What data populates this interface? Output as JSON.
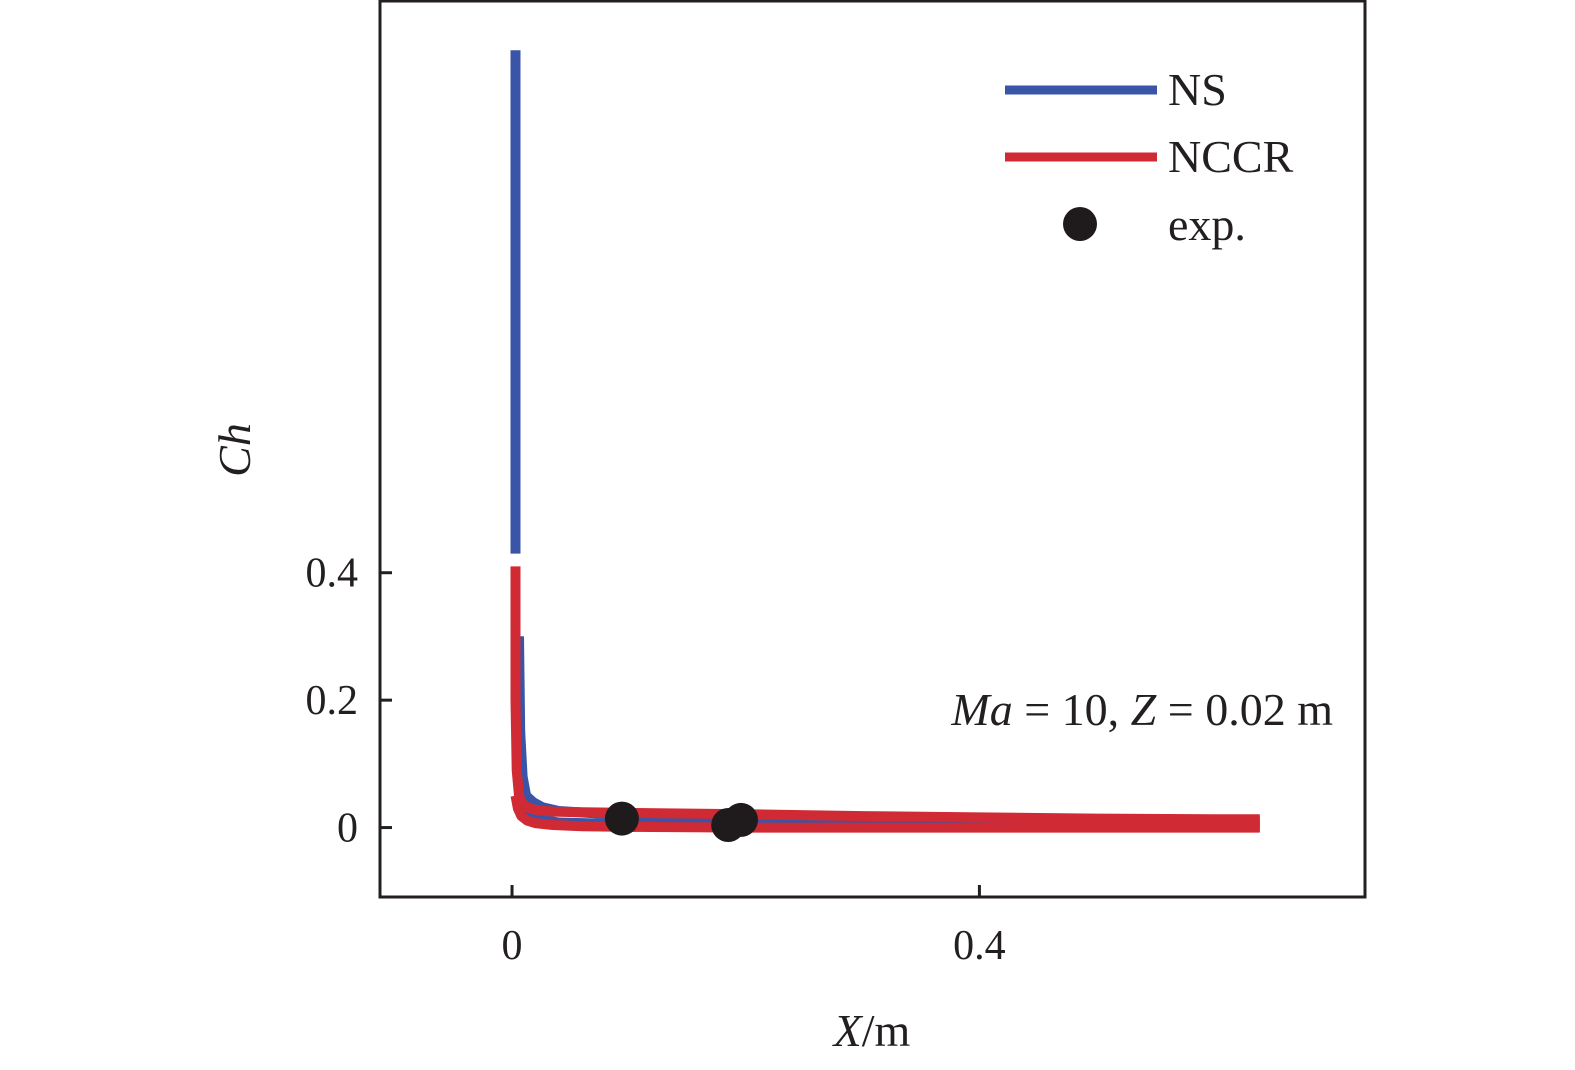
{
  "chart_data": {
    "type": "line",
    "title": "",
    "xlabel": {
      "var": "X",
      "unit": "/m"
    },
    "ylabel": "Ch",
    "xlim": [
      -0.113,
      0.73
    ],
    "ylim": [
      -0.109,
      1.299
    ],
    "x_ticks": [
      0,
      0.4
    ],
    "x_tick_labels": [
      "0",
      "0.4"
    ],
    "y_ticks": [
      0,
      0.2,
      0.4
    ],
    "y_tick_labels": [
      "0",
      "0.2",
      "0.4"
    ],
    "grid": false,
    "legend": {
      "position": "top-right"
    },
    "annotation": {
      "Ma_var": "Ma",
      "Ma_text": " = 10, ",
      "Z_var": "Z",
      "Z_text": " = 0.02 m"
    },
    "colors": {
      "NS": "#3a55a8",
      "NCCR": "#d02a35",
      "exp": "#1f1a1b",
      "axis": "#231f20"
    },
    "series": [
      {
        "name": "NS",
        "type": "line",
        "curves": [
          {
            "x": [
              0.003,
              0.003
            ],
            "y": [
              1.22,
              0.43
            ]
          },
          {
            "x": [
              0.006,
              0.007,
              0.009,
              0.012,
              0.018,
              0.026,
              0.04,
              0.1,
              0.2,
              0.3,
              0.4,
              0.5,
              0.6,
              0.64
            ],
            "y": [
              0.3,
              0.15,
              0.08,
              0.05,
              0.04,
              0.032,
              0.026,
              0.019,
              0.016,
              0.013,
              0.011,
              0.01,
              0.01,
              0.01
            ]
          },
          {
            "x": [
              0.005,
              0.008,
              0.012,
              0.02,
              0.04,
              0.1,
              0.2,
              0.3,
              0.4,
              0.5,
              0.6,
              0.64
            ],
            "y": [
              0.3,
              0.06,
              0.025,
              0.014,
              0.008,
              0.005,
              0.003,
              0.002,
              0.001,
              0.001,
              0.001,
              0.001
            ]
          }
        ]
      },
      {
        "name": "NCCR",
        "type": "line",
        "curves": [
          {
            "x": [
              0.003,
              0.003,
              0.004,
              0.006,
              0.009,
              0.014,
              0.022,
              0.035,
              0.06,
              0.1,
              0.2,
              0.3,
              0.4,
              0.5,
              0.6,
              0.64
            ],
            "y": [
              0.41,
              0.2,
              0.09,
              0.05,
              0.037,
              0.031,
              0.027,
              0.025,
              0.024,
              0.023,
              0.021,
              0.018,
              0.016,
              0.014,
              0.013,
              0.013
            ]
          },
          {
            "x": [
              0.003,
              0.005,
              0.008,
              0.013,
              0.02,
              0.035,
              0.06,
              0.1,
              0.2,
              0.3,
              0.4,
              0.5,
              0.6,
              0.64
            ],
            "y": [
              0.05,
              0.03,
              0.018,
              0.011,
              0.007,
              0.004,
              0.002,
              0.001,
              0.0,
              0.0,
              0.0,
              0.0,
              0.0,
              0.0
            ]
          }
        ]
      },
      {
        "name": "exp.",
        "type": "scatter",
        "x": [
          0.094,
          0.185,
          0.196
        ],
        "y": [
          0.014,
          0.004,
          0.012
        ]
      }
    ]
  }
}
